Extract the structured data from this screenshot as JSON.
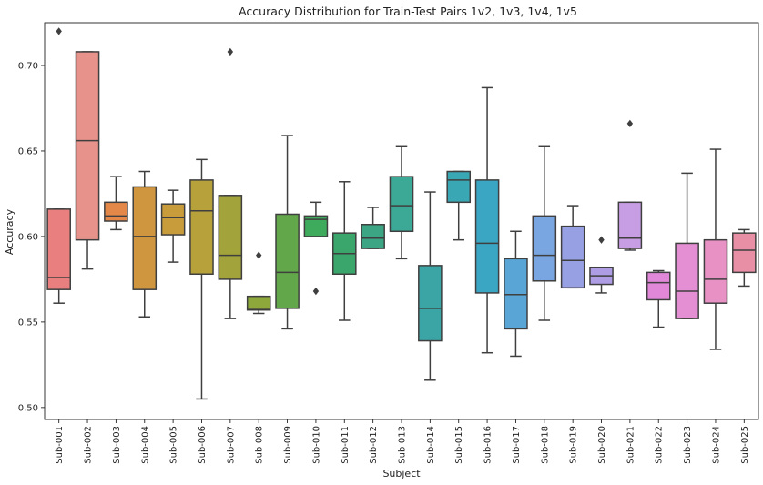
{
  "chart_data": {
    "type": "box",
    "title": "Accuracy Distribution for Train-Test Pairs 1v2, 1v3, 1v4, 1v5",
    "xlabel": "Subject",
    "ylabel": "Accuracy",
    "ylim": [
      0.493,
      0.725
    ],
    "yticks": [
      0.5,
      0.55,
      0.6,
      0.65,
      0.7
    ],
    "ytick_labels": [
      "0.50",
      "0.55",
      "0.60",
      "0.65",
      "0.70"
    ],
    "grid": false,
    "categories": [
      "Sub-001",
      "Sub-002",
      "Sub-003",
      "Sub-004",
      "Sub-005",
      "Sub-006",
      "Sub-007",
      "Sub-008",
      "Sub-009",
      "Sub-010",
      "Sub-011",
      "Sub-012",
      "Sub-013",
      "Sub-014",
      "Sub-015",
      "Sub-016",
      "Sub-017",
      "Sub-018",
      "Sub-019",
      "Sub-020",
      "Sub-021",
      "Sub-022",
      "Sub-023",
      "Sub-024",
      "Sub-025"
    ],
    "colors": [
      "#e9807f",
      "#e7928b",
      "#e4884a",
      "#d0963f",
      "#c89c3a",
      "#b6a13b",
      "#a2a33a",
      "#8fa83c",
      "#62a84a",
      "#3daa5c",
      "#3aa66c",
      "#3ca684",
      "#3ca896",
      "#3ba4a4",
      "#3aa7b4",
      "#3ba6c4",
      "#58a5d6",
      "#79a6e0",
      "#98a0e4",
      "#ae9de4",
      "#c79de4",
      "#e188d8",
      "#e48fd4",
      "#e891c5",
      "#e88ea5"
    ],
    "boxes": [
      {
        "whislo": 0.561,
        "q1": 0.569,
        "med": 0.576,
        "q3": 0.616,
        "whishi": 0.616,
        "fliers": [
          0.72
        ]
      },
      {
        "whislo": 0.581,
        "q1": 0.598,
        "med": 0.656,
        "q3": 0.708,
        "whishi": 0.708,
        "fliers": []
      },
      {
        "whislo": 0.604,
        "q1": 0.609,
        "med": 0.612,
        "q3": 0.62,
        "whishi": 0.635,
        "fliers": []
      },
      {
        "whislo": 0.553,
        "q1": 0.569,
        "med": 0.6,
        "q3": 0.629,
        "whishi": 0.638,
        "fliers": []
      },
      {
        "whislo": 0.585,
        "q1": 0.601,
        "med": 0.611,
        "q3": 0.619,
        "whishi": 0.627,
        "fliers": []
      },
      {
        "whislo": 0.505,
        "q1": 0.578,
        "med": 0.615,
        "q3": 0.633,
        "whishi": 0.645,
        "fliers": []
      },
      {
        "whislo": 0.552,
        "q1": 0.575,
        "med": 0.589,
        "q3": 0.624,
        "whishi": 0.624,
        "fliers": [
          0.708
        ]
      },
      {
        "whislo": 0.555,
        "q1": 0.557,
        "med": 0.558,
        "q3": 0.565,
        "whishi": 0.565,
        "fliers": [
          0.589
        ]
      },
      {
        "whislo": 0.546,
        "q1": 0.558,
        "med": 0.579,
        "q3": 0.613,
        "whishi": 0.659,
        "fliers": []
      },
      {
        "whislo": 0.6,
        "q1": 0.6,
        "med": 0.61,
        "q3": 0.612,
        "whishi": 0.62,
        "fliers": [
          0.568
        ]
      },
      {
        "whislo": 0.551,
        "q1": 0.578,
        "med": 0.59,
        "q3": 0.602,
        "whishi": 0.632,
        "fliers": []
      },
      {
        "whislo": 0.593,
        "q1": 0.593,
        "med": 0.599,
        "q3": 0.607,
        "whishi": 0.617,
        "fliers": []
      },
      {
        "whislo": 0.587,
        "q1": 0.603,
        "med": 0.618,
        "q3": 0.635,
        "whishi": 0.653,
        "fliers": []
      },
      {
        "whislo": 0.516,
        "q1": 0.539,
        "med": 0.558,
        "q3": 0.583,
        "whishi": 0.626,
        "fliers": []
      },
      {
        "whislo": 0.598,
        "q1": 0.62,
        "med": 0.633,
        "q3": 0.638,
        "whishi": 0.638,
        "fliers": []
      },
      {
        "whislo": 0.532,
        "q1": 0.567,
        "med": 0.596,
        "q3": 0.633,
        "whishi": 0.687,
        "fliers": []
      },
      {
        "whislo": 0.53,
        "q1": 0.546,
        "med": 0.566,
        "q3": 0.587,
        "whishi": 0.603,
        "fliers": []
      },
      {
        "whislo": 0.551,
        "q1": 0.574,
        "med": 0.589,
        "q3": 0.612,
        "whishi": 0.653,
        "fliers": []
      },
      {
        "whislo": 0.57,
        "q1": 0.57,
        "med": 0.586,
        "q3": 0.606,
        "whishi": 0.618,
        "fliers": []
      },
      {
        "whislo": 0.567,
        "q1": 0.572,
        "med": 0.577,
        "q3": 0.582,
        "whishi": 0.582,
        "fliers": [
          0.598
        ]
      },
      {
        "whislo": 0.592,
        "q1": 0.593,
        "med": 0.599,
        "q3": 0.62,
        "whishi": 0.62,
        "fliers": [
          0.666
        ]
      },
      {
        "whislo": 0.547,
        "q1": 0.563,
        "med": 0.573,
        "q3": 0.579,
        "whishi": 0.58,
        "fliers": []
      },
      {
        "whislo": 0.552,
        "q1": 0.552,
        "med": 0.568,
        "q3": 0.596,
        "whishi": 0.637,
        "fliers": []
      },
      {
        "whislo": 0.534,
        "q1": 0.561,
        "med": 0.575,
        "q3": 0.598,
        "whishi": 0.651,
        "fliers": []
      },
      {
        "whislo": 0.571,
        "q1": 0.579,
        "med": 0.592,
        "q3": 0.602,
        "whishi": 0.604,
        "fliers": []
      }
    ]
  }
}
